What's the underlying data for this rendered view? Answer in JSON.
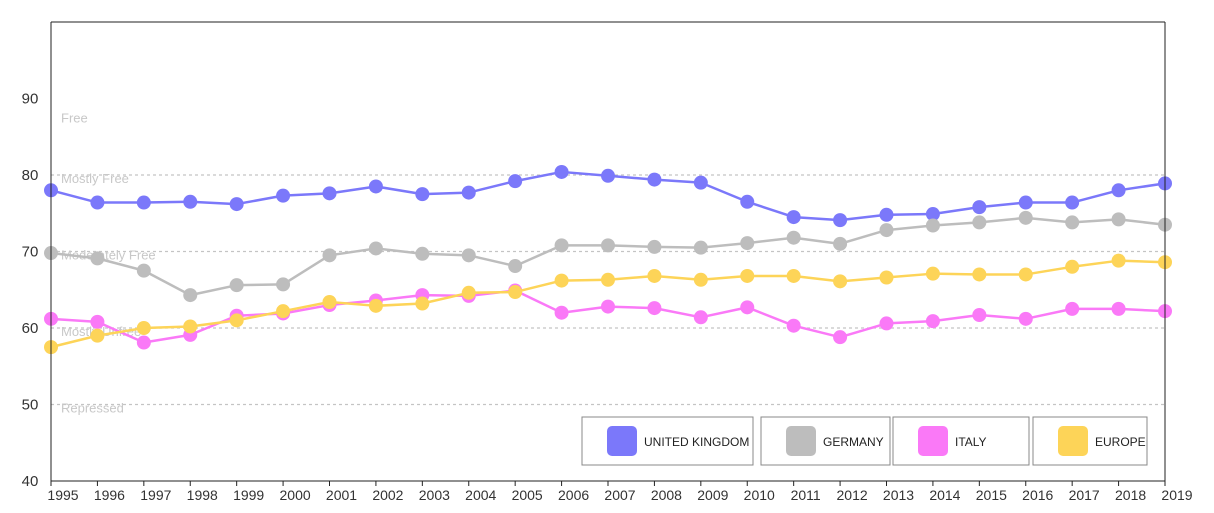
{
  "chart_data": {
    "type": "line",
    "title": "",
    "xlabel": "",
    "ylabel": "",
    "ylim": [
      40,
      100
    ],
    "xlim": [
      1995,
      2019
    ],
    "y_ticks": [
      "40",
      "50",
      "60",
      "70",
      "80",
      "90"
    ],
    "x": [
      "1995",
      "1996",
      "1997",
      "1998",
      "1999",
      "2000",
      "2001",
      "2002",
      "2003",
      "2004",
      "2005",
      "2006",
      "2007",
      "2008",
      "2009",
      "2010",
      "2011",
      "2012",
      "2013",
      "2014",
      "2015",
      "2016",
      "2017",
      "2018",
      "2019"
    ],
    "zones": [
      {
        "label": "Free",
        "value": 87.5
      },
      {
        "label": "Mostly Free",
        "value": 79.6
      },
      {
        "label": "Moderately Free",
        "value": 69.6
      },
      {
        "label": "Mostly Unfree",
        "value": 59.6
      },
      {
        "label": "Repressed",
        "value": 49.6
      }
    ],
    "thresholds": [
      80,
      70,
      60,
      50
    ],
    "grid": "dashed horizontal at zone thresholds",
    "legend_position": "bottom-right",
    "series": [
      {
        "name": "UNITED KINGDOM",
        "color": "#7b78fa",
        "values": [
          78.0,
          76.4,
          76.4,
          76.5,
          76.2,
          77.3,
          77.6,
          78.5,
          77.5,
          77.7,
          79.2,
          80.4,
          79.9,
          79.4,
          79.0,
          76.5,
          74.5,
          74.1,
          74.8,
          74.9,
          75.8,
          76.4,
          76.4,
          78.0,
          78.9
        ]
      },
      {
        "name": "GERMANY",
        "color": "#bdbdbd",
        "values": [
          69.8,
          69.1,
          67.5,
          64.3,
          65.6,
          65.7,
          69.5,
          70.4,
          69.7,
          69.5,
          68.1,
          70.8,
          70.8,
          70.6,
          70.5,
          71.1,
          71.8,
          71.0,
          72.8,
          73.4,
          73.8,
          74.4,
          73.8,
          74.2,
          73.5
        ]
      },
      {
        "name": "ITALY",
        "color": "#fa79f7",
        "values": [
          61.2,
          60.8,
          58.1,
          59.1,
          61.6,
          61.9,
          63.0,
          63.6,
          64.3,
          64.2,
          64.9,
          62.0,
          62.8,
          62.6,
          61.4,
          62.7,
          60.3,
          58.8,
          60.6,
          60.9,
          61.7,
          61.2,
          62.5,
          62.5,
          62.2
        ]
      },
      {
        "name": "EUROPE",
        "color": "#fdd458",
        "values": [
          57.5,
          59.0,
          60.0,
          60.2,
          61.0,
          62.2,
          63.4,
          62.9,
          63.2,
          64.6,
          64.7,
          66.2,
          66.3,
          66.8,
          66.3,
          66.8,
          66.8,
          66.1,
          66.6,
          67.1,
          67.0,
          67.0,
          68.0,
          68.8,
          68.6
        ]
      }
    ]
  }
}
